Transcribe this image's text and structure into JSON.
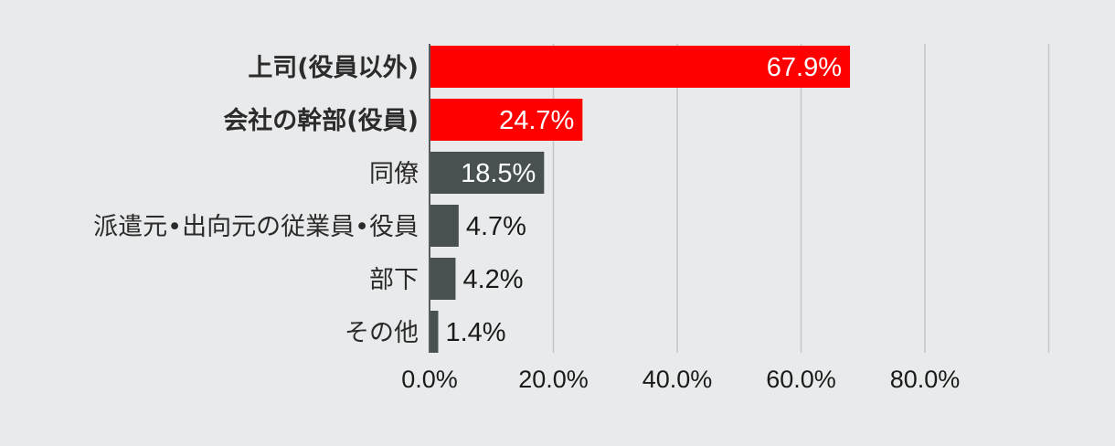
{
  "chart_data": {
    "type": "bar",
    "orientation": "horizontal",
    "title": "",
    "xlabel": "",
    "ylabel": "",
    "categories": [
      "上司(役員以外)",
      "会社の幹部(役員)",
      "同僚",
      "派遣元•出向元の従業員•役員",
      "部下",
      "その他"
    ],
    "values": [
      67.9,
      24.7,
      18.5,
      4.7,
      4.2,
      1.4
    ],
    "value_labels": [
      "67.9%",
      "24.7%",
      "18.5%",
      "4.7%",
      "4.2%",
      "1.4%"
    ],
    "highlighted": [
      true,
      true,
      false,
      false,
      false,
      false
    ],
    "xlim": [
      0,
      100
    ],
    "x_ticks": [
      0,
      20,
      40,
      60,
      80
    ],
    "x_tick_labels": [
      "0.0%",
      "20.0%",
      "40.0%",
      "60.0%",
      "80.0%"
    ],
    "grid": "vertical",
    "colors": {
      "highlight": "#ff0000",
      "default": "#495051",
      "background": "#e8eaeb",
      "grid": "#c3c6c7",
      "axis": "#555a5c"
    }
  }
}
